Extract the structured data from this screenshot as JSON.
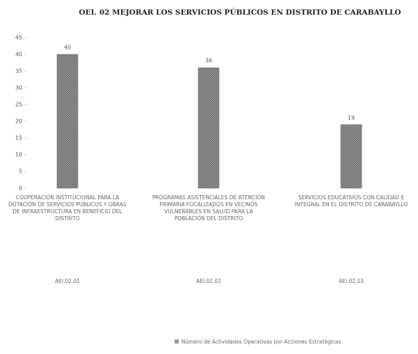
{
  "chart_data": {
    "type": "bar",
    "title": "OEI. 02 MEJORAR LOS SERVICIOS PÚBLICOS EN DISTRITO DE CARABAYLLO",
    "categories": [
      "Cooperación institucional para la dotación de servicios públicos y obras de infraestructura en beneficio del distrito",
      "Programas asistenciales de atención primaria focalizados en vecinos vulnerables en salud para la población del distrito",
      "Servicios educativos con calidad e integral en el distrito de Carabayllo"
    ],
    "category_codes": [
      "AEI.02.01",
      "AEI.02.02",
      "AEI.02.03"
    ],
    "series": [
      {
        "name": "Número de Actividades Operativas por Acciones Estratégicas",
        "color": "#9a9a9a",
        "values": [
          40,
          36,
          19
        ]
      }
    ],
    "ylim": [
      0,
      45
    ],
    "yticks": [
      0,
      5,
      10,
      15,
      20,
      25,
      30,
      35,
      40,
      45
    ],
    "grid": false
  }
}
